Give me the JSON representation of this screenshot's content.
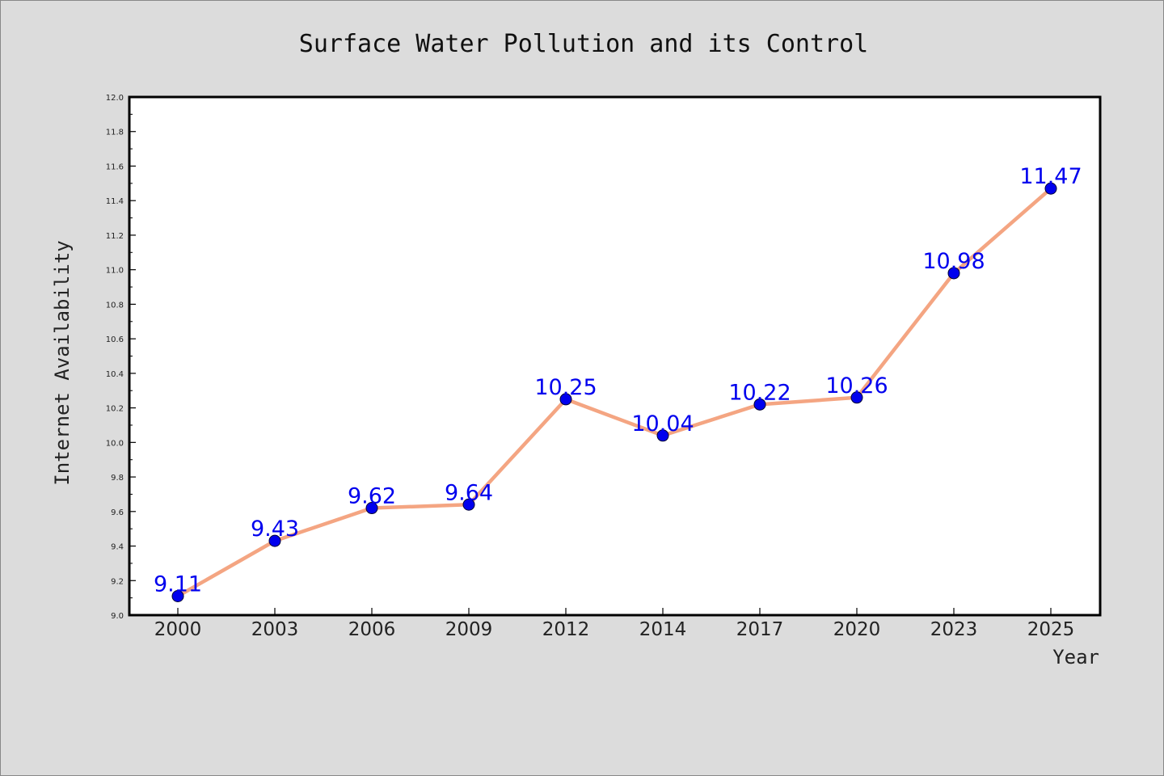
{
  "chart_data": {
    "type": "line",
    "title": "Surface Water Pollution and its Control",
    "xlabel": "Year",
    "ylabel": "Internet Availability",
    "categories": [
      "2000",
      "2003",
      "2006",
      "2009",
      "2012",
      "2014",
      "2017",
      "2020",
      "2023",
      "2025"
    ],
    "series": [
      {
        "values": [
          9.11,
          9.43,
          9.62,
          9.64,
          10.25,
          10.04,
          10.22,
          10.26,
          10.98,
          11.47
        ]
      }
    ],
    "data_labels": [
      "9.11",
      "9.43",
      "9.62",
      "9.64",
      "10.25",
      "10.04",
      "10.22",
      "10.26",
      "10.98",
      "11.47"
    ],
    "ylim": [
      9.0,
      12.0
    ],
    "yticks": [
      "9.0",
      "9.2",
      "9.4",
      "9.6",
      "9.8",
      "10.0",
      "10.2",
      "10.4",
      "10.6",
      "10.8",
      "11.0",
      "11.2",
      "11.4",
      "11.6",
      "11.8",
      "12.0"
    ],
    "grid": false,
    "legend": "none",
    "colors": {
      "line": "#f4a582",
      "marker": "#0000ee",
      "labels": "#0000ee",
      "plot_background": "#ffffff",
      "figure_background": "#dcdcdc"
    }
  }
}
